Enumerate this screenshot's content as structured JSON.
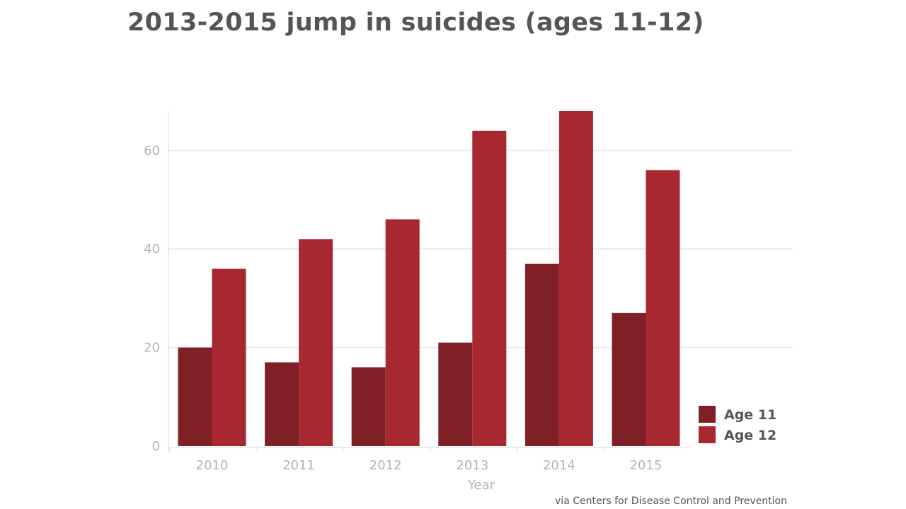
{
  "chart_data": {
    "type": "bar",
    "title": "2013-2015 jump in suicides (ages 11-12)",
    "xlabel": "Year",
    "ylabel": "",
    "categories": [
      "2010",
      "2011",
      "2012",
      "2013",
      "2014",
      "2015"
    ],
    "series": [
      {
        "name": "Age 11",
        "values": [
          20,
          17,
          16,
          21,
          37,
          27
        ],
        "color": "#7f1f26"
      },
      {
        "name": "Age 12",
        "values": [
          36,
          42,
          46,
          64,
          68,
          56
        ],
        "color": "#a82832"
      }
    ],
    "ylim": [
      0,
      68
    ],
    "yticks": [
      0,
      20,
      40,
      60
    ],
    "grid": true,
    "legend_position": "bottom-right",
    "source": "via Centers for Disease Control and Prevention"
  }
}
